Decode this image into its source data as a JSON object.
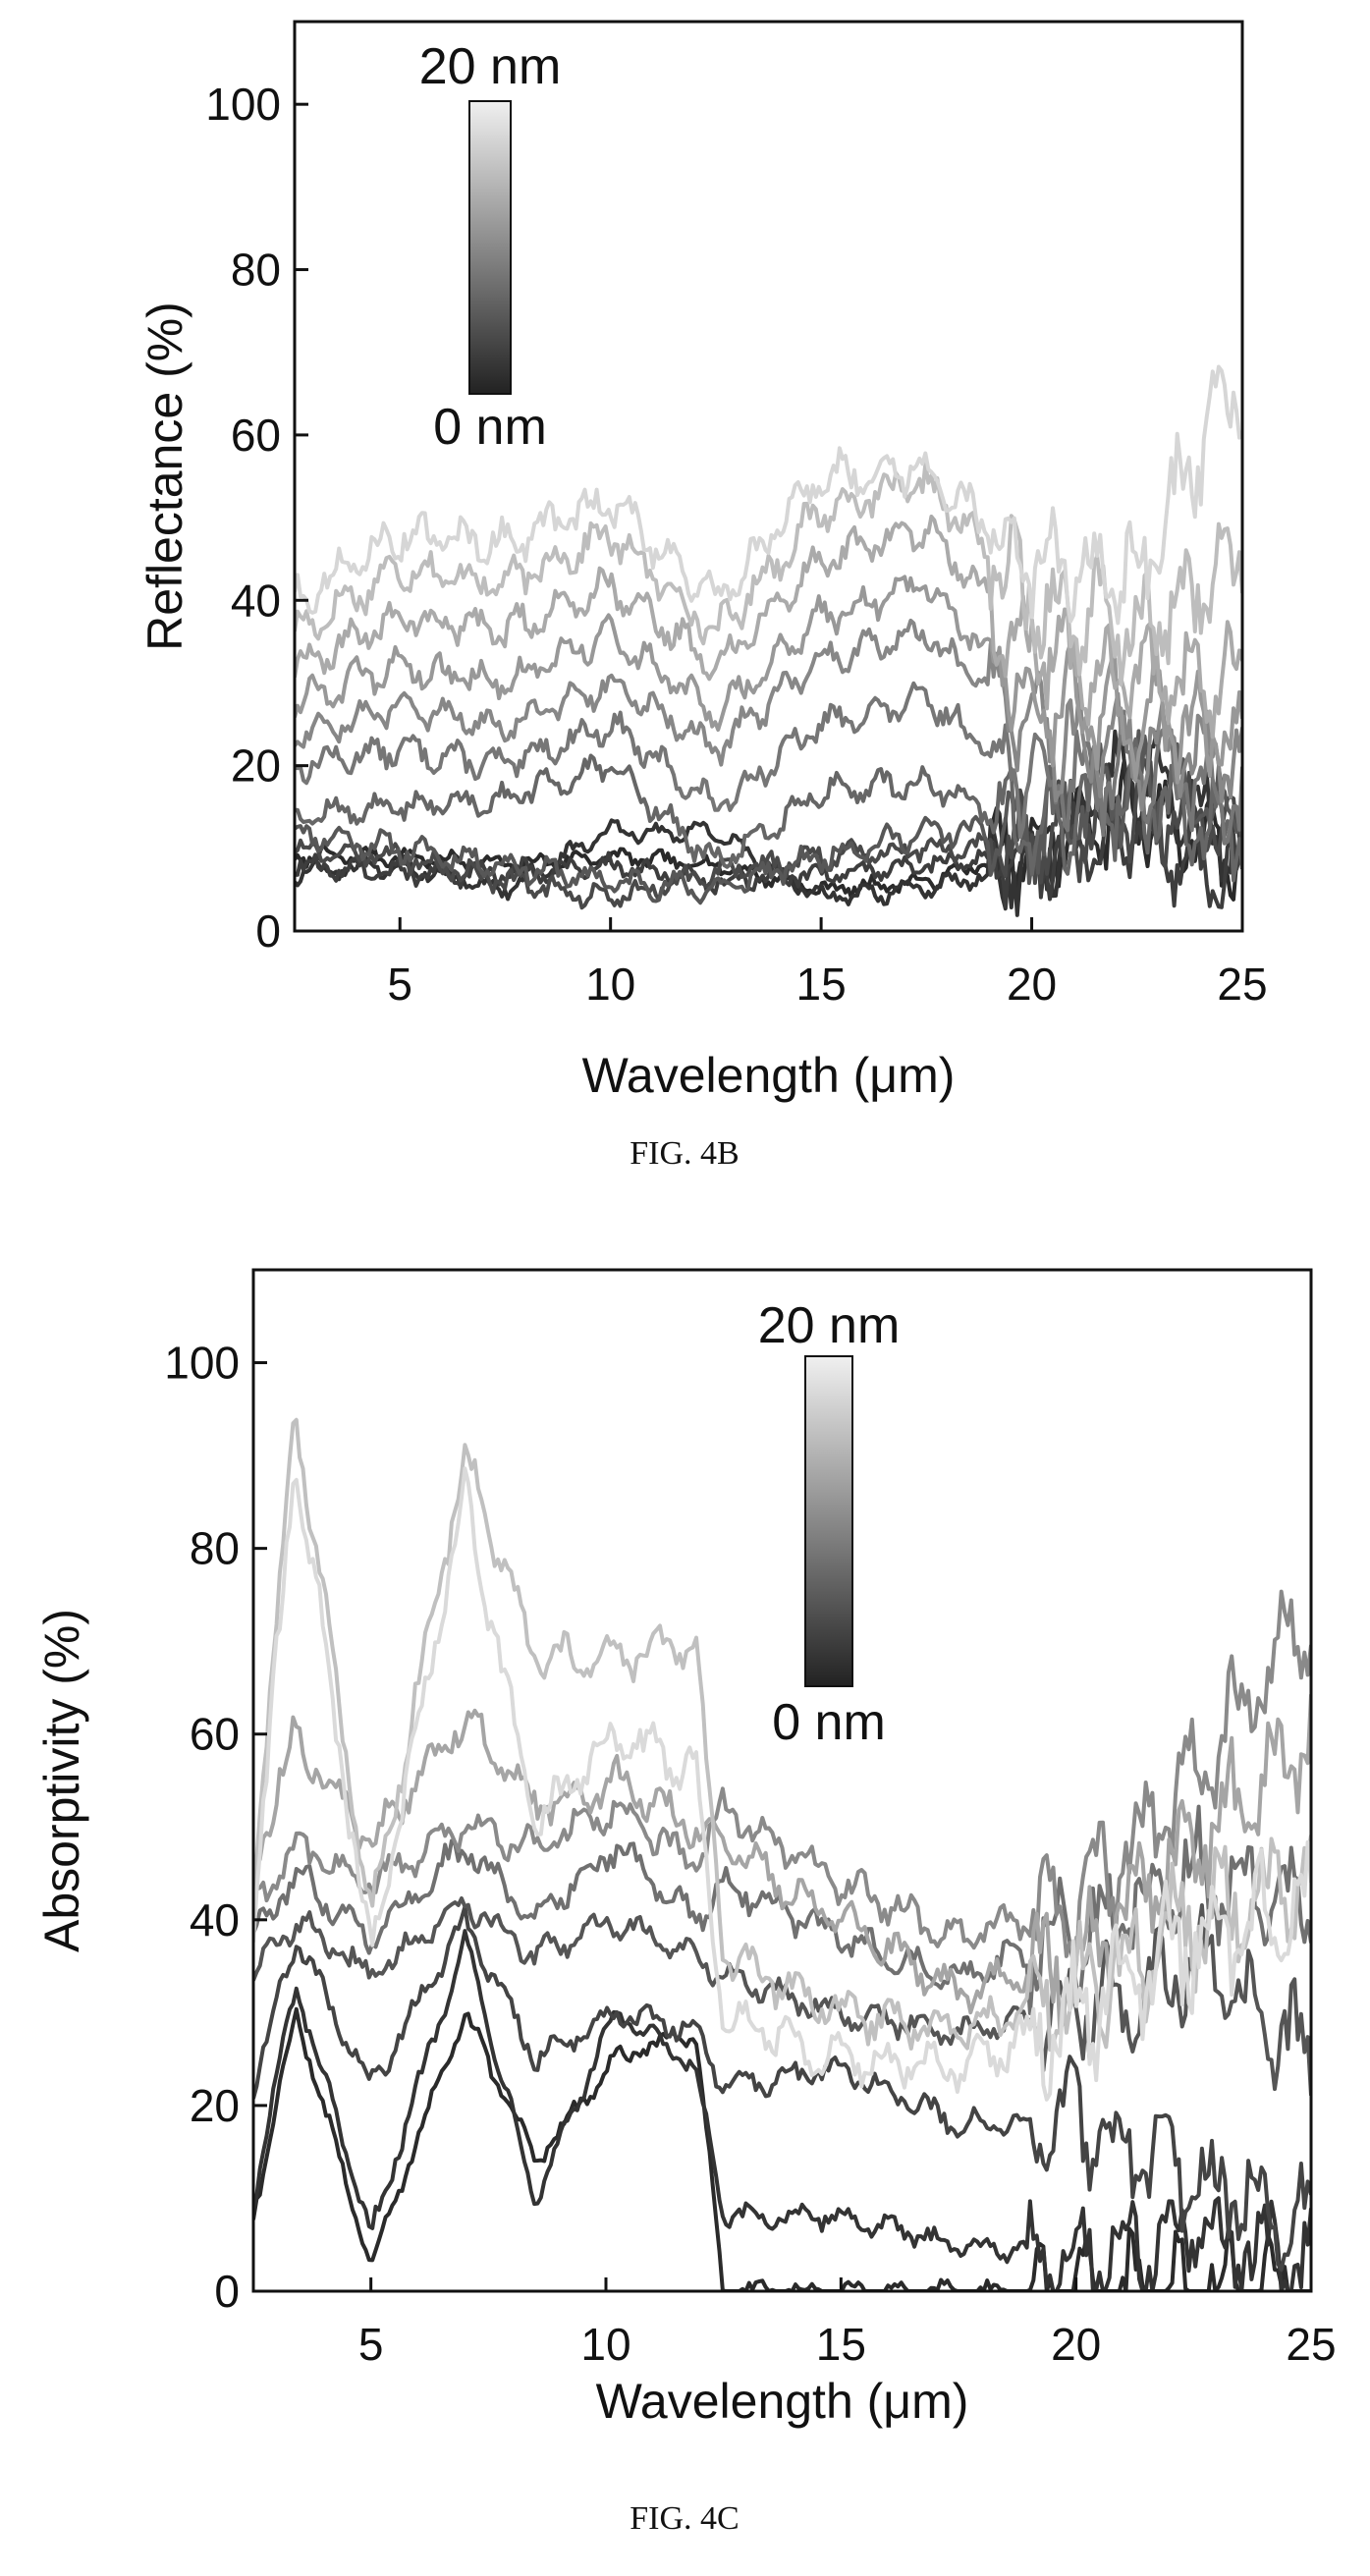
{
  "chart_data": [
    {
      "type": "line",
      "caption": "FIG. 4B",
      "xlabel": "Wavelength (μm)",
      "ylabel": "Reflectance (%)",
      "xlim": [
        2.5,
        25
      ],
      "ylim": [
        0,
        110
      ],
      "xticks": [
        5,
        10,
        15,
        20,
        25
      ],
      "yticks": [
        0,
        20,
        40,
        60,
        80,
        100
      ],
      "colorbar": {
        "top_label": "20 nm",
        "bottom_label": "0 nm",
        "colors": [
          "#f0f0f0",
          "#222222"
        ]
      },
      "series": [
        {
          "color": "#2a2a2a",
          "x": [
            2.5,
            5,
            7.5,
            10,
            12.5,
            15,
            17.5,
            20,
            22.5,
            25
          ],
          "y": [
            9,
            9,
            8,
            9,
            8,
            5,
            6,
            10,
            15,
            8
          ]
        },
        {
          "color": "#333333",
          "x": [
            2.5,
            5,
            7.5,
            10,
            12.5,
            15,
            17.5,
            20,
            22.5,
            25
          ],
          "y": [
            7,
            8,
            5,
            12,
            12,
            4,
            5,
            8,
            20,
            10
          ]
        },
        {
          "color": "#3d3d3d",
          "x": [
            2.5,
            5,
            7.5,
            10,
            12.5,
            15,
            17.5,
            20,
            22.5,
            25
          ],
          "y": [
            8,
            7,
            7,
            8,
            6,
            7,
            8,
            9,
            12,
            6
          ]
        },
        {
          "color": "#494949",
          "x": [
            2.5,
            5,
            7.5,
            10,
            12.5,
            15,
            17.5,
            20,
            22.5,
            25
          ],
          "y": [
            10,
            9,
            6,
            4,
            7,
            9,
            10,
            10,
            15,
            12
          ]
        },
        {
          "color": "#575757",
          "x": [
            2.5,
            5,
            7.5,
            10,
            12.5,
            15,
            17.5,
            20,
            22.5,
            25
          ],
          "y": [
            12,
            10,
            8,
            6,
            5,
            9,
            12,
            12,
            18,
            14
          ]
        },
        {
          "color": "#666666",
          "x": [
            2.5,
            5,
            7.5,
            10,
            12.5,
            15,
            17.5,
            20,
            22.5,
            25
          ],
          "y": [
            14,
            15,
            16,
            20,
            8,
            17,
            18,
            12,
            16,
            12
          ]
        },
        {
          "color": "#767676",
          "x": [
            2.5,
            5,
            7.5,
            10,
            12.5,
            15,
            17.5,
            20,
            22.5,
            25
          ],
          "y": [
            20,
            22,
            20,
            25,
            15,
            25,
            28,
            18,
            20,
            16
          ]
        },
        {
          "color": "#878787",
          "x": [
            2.5,
            5,
            7.5,
            10,
            12.5,
            15,
            17.5,
            20,
            22.5,
            25
          ],
          "y": [
            24,
            27,
            25,
            30,
            22,
            33,
            36,
            24,
            22,
            20
          ]
        },
        {
          "color": "#989898",
          "x": [
            2.5,
            5,
            7.5,
            10,
            12.5,
            15,
            17.5,
            20,
            22.5,
            25
          ],
          "y": [
            28,
            32,
            30,
            36,
            26,
            38,
            42,
            28,
            25,
            24
          ]
        },
        {
          "color": "#aaaaaa",
          "x": [
            2.5,
            5,
            7.5,
            10,
            12.5,
            15,
            17.5,
            20,
            22.5,
            25
          ],
          "y": [
            32,
            38,
            36,
            42,
            32,
            45,
            49,
            34,
            30,
            30
          ]
        },
        {
          "color": "#bdbdbd",
          "x": [
            2.5,
            5,
            7.5,
            10,
            12.5,
            15,
            17.5,
            20,
            22.5,
            25
          ],
          "y": [
            36,
            44,
            42,
            48,
            36,
            51,
            54,
            40,
            36,
            45
          ]
        },
        {
          "color": "#d6d6d6",
          "x": [
            2.5,
            5,
            7.5,
            10,
            12.5,
            15,
            17.5,
            20,
            22.5,
            25
          ],
          "y": [
            40,
            48,
            47,
            52,
            40,
            55,
            56,
            44,
            42,
            68
          ]
        }
      ]
    },
    {
      "type": "line",
      "caption": "FIG. 4C",
      "xlabel": "Wavelength (μm)",
      "ylabel": "Absorptivity (%)",
      "xlim": [
        2.5,
        25
      ],
      "ylim": [
        0,
        110
      ],
      "xticks": [
        5,
        10,
        15,
        20,
        25
      ],
      "yticks": [
        0,
        20,
        40,
        60,
        80,
        100
      ],
      "colorbar": {
        "top_label": "20 nm",
        "bottom_label": "0 nm",
        "colors": [
          "#f0f0f0",
          "#222222"
        ]
      },
      "series": [
        {
          "color": "#2a2a2a",
          "x": [
            2.5,
            3.4,
            5,
            7,
            8.5,
            10.2,
            11.9,
            12.5,
            15,
            17.5,
            20,
            22.5,
            25
          ],
          "y": [
            8,
            30,
            3,
            30,
            14,
            25,
            28,
            0,
            0,
            0,
            0,
            1,
            0
          ]
        },
        {
          "color": "#333333",
          "x": [
            2.5,
            3.4,
            5,
            7,
            8.5,
            10.2,
            11.9,
            12.5,
            15,
            17.5,
            20,
            22.5,
            25
          ],
          "y": [
            10,
            33,
            6,
            38,
            10,
            30,
            24,
            8,
            8,
            5,
            4,
            6,
            3
          ]
        },
        {
          "color": "#444444",
          "x": [
            2.5,
            3.4,
            5,
            7,
            8.5,
            10.2,
            11.9,
            12.5,
            15,
            17.5,
            20,
            22.5,
            25
          ],
          "y": [
            22,
            38,
            22,
            40,
            25,
            30,
            28,
            22,
            24,
            18,
            18,
            12,
            8
          ]
        },
        {
          "color": "#555555",
          "x": [
            2.5,
            3.4,
            5,
            7,
            8.5,
            10.2,
            11.9,
            12.5,
            15,
            17.5,
            20,
            22.5,
            25
          ],
          "y": [
            34,
            40,
            34,
            42,
            36,
            40,
            36,
            34,
            30,
            28,
            30,
            35,
            25
          ]
        },
        {
          "color": "#707070",
          "x": [
            2.5,
            3.4,
            5,
            7,
            8.5,
            10.2,
            11.9,
            12.5,
            15,
            17.5,
            20,
            22.5,
            25
          ],
          "y": [
            38,
            45,
            38,
            48,
            40,
            48,
            40,
            44,
            38,
            34,
            38,
            45,
            40
          ]
        },
        {
          "color": "#8a8a8a",
          "x": [
            2.5,
            3.4,
            5,
            7,
            8.5,
            10.2,
            11.9,
            12.5,
            15,
            17.5,
            20,
            22.5,
            25
          ],
          "y": [
            42,
            48,
            44,
            50,
            48,
            52,
            46,
            52,
            44,
            38,
            42,
            55,
            74
          ]
        },
        {
          "color": "#a5a5a5",
          "x": [
            2.5,
            3.4,
            5,
            7,
            8.5,
            10.2,
            11.9,
            12.5,
            15,
            17.5,
            20,
            22.5,
            25
          ],
          "y": [
            46,
            60,
            48,
            62,
            52,
            55,
            50,
            48,
            40,
            32,
            36,
            48,
            60
          ]
        },
        {
          "color": "#c0c0c0",
          "x": [
            2.5,
            3.4,
            5,
            7,
            8.5,
            10.2,
            11.9,
            12.5,
            15,
            17.5,
            20,
            22.5,
            25
          ],
          "y": [
            44,
            95,
            40,
            90,
            68,
            68,
            70,
            36,
            30,
            28,
            32,
            40,
            44
          ]
        },
        {
          "color": "#dadada",
          "x": [
            2.5,
            3.4,
            5,
            7,
            8.5,
            10.2,
            11.9,
            12.5,
            15,
            17.5,
            20,
            22.5,
            25
          ],
          "y": [
            40,
            90,
            36,
            86,
            50,
            60,
            56,
            30,
            25,
            24,
            30,
            38,
            42
          ]
        }
      ]
    }
  ]
}
